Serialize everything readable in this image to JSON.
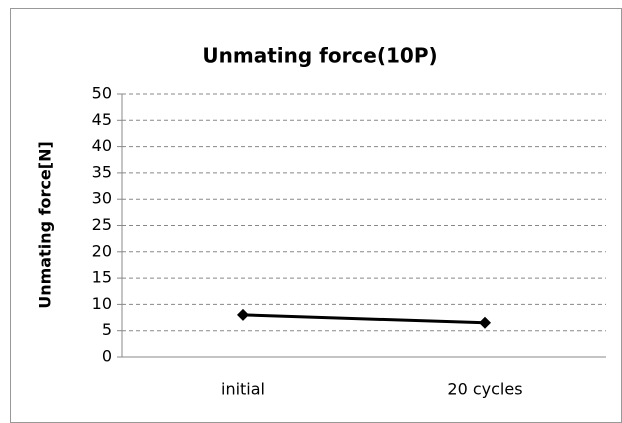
{
  "chart_data": {
    "type": "line",
    "title": "Unmating force(10P)",
    "y_label": "Unmating force[N]",
    "categories": [
      "initial",
      "20 cycles"
    ],
    "series": [
      {
        "name": "Unmating force",
        "color": "#000000",
        "values": [
          8.0,
          6.5
        ]
      }
    ],
    "ylim": [
      0,
      50
    ],
    "yticks": [
      0,
      5,
      10,
      15,
      20,
      25,
      30,
      35,
      40,
      45,
      50
    ],
    "grid": true
  }
}
